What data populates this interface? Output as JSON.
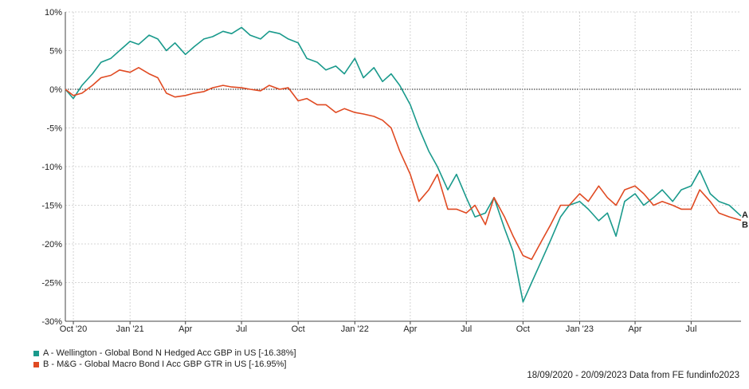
{
  "chart_data": {
    "type": "line",
    "title": "",
    "xlabel": "",
    "ylabel": "",
    "ylim": [
      -30,
      10
    ],
    "xlim": [
      "2020-09-18",
      "2023-09-20"
    ],
    "y_ticks": [
      10,
      5,
      0,
      -5,
      -10,
      -15,
      -20,
      -25,
      -30
    ],
    "y_tick_labels": [
      "10%",
      "5%",
      "0%",
      "-5%",
      "-10%",
      "-15%",
      "-20%",
      "-25%",
      "-30%"
    ],
    "x_ticks": [
      "2020-10-01",
      "2021-01-01",
      "2021-04-01",
      "2021-07-01",
      "2021-10-01",
      "2022-01-01",
      "2022-04-01",
      "2022-07-01",
      "2022-10-01",
      "2023-01-01",
      "2023-04-01",
      "2023-07-01"
    ],
    "x_tick_labels": [
      "Oct '20",
      "Jan '21",
      "Apr",
      "Jul",
      "Oct",
      "Jan '22",
      "Apr",
      "Jul",
      "Oct",
      "Jan '23",
      "Apr",
      "Jul"
    ],
    "grid": true,
    "legend_placement": "bottom-left",
    "x": [
      "2020-09-18",
      "2020-10-01",
      "2020-10-15",
      "2020-11-01",
      "2020-11-15",
      "2020-12-01",
      "2020-12-15",
      "2021-01-01",
      "2021-01-15",
      "2021-02-01",
      "2021-02-15",
      "2021-03-01",
      "2021-03-15",
      "2021-04-01",
      "2021-04-15",
      "2021-05-01",
      "2021-05-15",
      "2021-06-01",
      "2021-06-15",
      "2021-07-01",
      "2021-07-15",
      "2021-08-01",
      "2021-08-15",
      "2021-09-01",
      "2021-09-15",
      "2021-10-01",
      "2021-10-15",
      "2021-11-01",
      "2021-11-15",
      "2021-12-01",
      "2021-12-15",
      "2022-01-01",
      "2022-01-15",
      "2022-02-01",
      "2022-02-15",
      "2022-03-01",
      "2022-03-15",
      "2022-04-01",
      "2022-04-15",
      "2022-05-01",
      "2022-05-15",
      "2022-06-01",
      "2022-06-15",
      "2022-07-01",
      "2022-07-15",
      "2022-08-01",
      "2022-08-15",
      "2022-09-01",
      "2022-09-15",
      "2022-10-01",
      "2022-10-15",
      "2022-11-01",
      "2022-11-15",
      "2022-12-01",
      "2022-12-15",
      "2023-01-01",
      "2023-01-15",
      "2023-02-01",
      "2023-02-15",
      "2023-03-01",
      "2023-03-15",
      "2023-04-01",
      "2023-04-15",
      "2023-05-01",
      "2023-05-15",
      "2023-06-01",
      "2023-06-15",
      "2023-07-01",
      "2023-07-15",
      "2023-08-01",
      "2023-08-15",
      "2023-09-01",
      "2023-09-20"
    ],
    "series": [
      {
        "name": "A - Wellington - Global Bond N Hedged Acc GBP in US [-16.38%]",
        "end_label": "A",
        "color": "#1a9a8c",
        "values": [
          0,
          -1.2,
          0.5,
          2.0,
          3.5,
          4.0,
          5.0,
          6.2,
          5.8,
          7.0,
          6.5,
          5.0,
          6.0,
          4.5,
          5.5,
          6.5,
          6.8,
          7.5,
          7.2,
          8.0,
          7.0,
          6.5,
          7.5,
          7.2,
          6.5,
          6.0,
          4.0,
          3.5,
          2.5,
          3.0,
          2.0,
          4.0,
          1.5,
          2.8,
          1.0,
          2.0,
          0.5,
          -2.0,
          -5.0,
          -8.0,
          -10.0,
          -13.0,
          -11.0,
          -14.0,
          -16.5,
          -16.0,
          -14.0,
          -18.0,
          -21.0,
          -27.5,
          -25.0,
          -22.0,
          -19.5,
          -16.5,
          -15.0,
          -14.5,
          -15.5,
          -17.0,
          -16.0,
          -19.0,
          -14.5,
          -13.5,
          -15.0,
          -14.0,
          -13.0,
          -14.5,
          -13.0,
          -12.5,
          -10.5,
          -13.5,
          -14.5,
          -15.0,
          -16.4
        ]
      },
      {
        "name": "B - M&G - Global Macro Bond I Acc GBP GTR in US [-16.95%]",
        "end_label": "B",
        "color": "#e04a22",
        "values": [
          0,
          -0.8,
          -0.5,
          0.5,
          1.5,
          1.8,
          2.5,
          2.2,
          2.8,
          2.0,
          1.5,
          -0.5,
          -1.0,
          -0.8,
          -0.5,
          -0.3,
          0.2,
          0.5,
          0.3,
          0.2,
          0.0,
          -0.2,
          0.5,
          0.0,
          0.2,
          -1.5,
          -1.2,
          -2.0,
          -2.0,
          -3.0,
          -2.5,
          -3.0,
          -3.2,
          -3.5,
          -4.0,
          -5.0,
          -8.0,
          -11.0,
          -14.5,
          -13.0,
          -11.0,
          -15.5,
          -15.5,
          -16.0,
          -15.0,
          -17.5,
          -14.0,
          -16.5,
          -19.0,
          -21.5,
          -22.0,
          -19.5,
          -17.5,
          -15.0,
          -15.0,
          -13.5,
          -14.5,
          -12.5,
          -14.0,
          -15.0,
          -13.0,
          -12.5,
          -13.5,
          -15.0,
          -14.5,
          -15.0,
          -15.5,
          -15.5,
          -13.0,
          -14.5,
          -16.0,
          -16.5,
          -16.95
        ]
      }
    ]
  },
  "legend": [
    {
      "label": "A - Wellington - Global Bond N Hedged Acc GBP in US [-16.38%]",
      "color": "#1a9a8c"
    },
    {
      "label": "B - M&G - Global Macro Bond I Acc GBP GTR in US [-16.95%]",
      "color": "#e04a22"
    }
  ],
  "footer": "18/09/2020 - 20/09/2023 Data from FE fundinfo2023"
}
